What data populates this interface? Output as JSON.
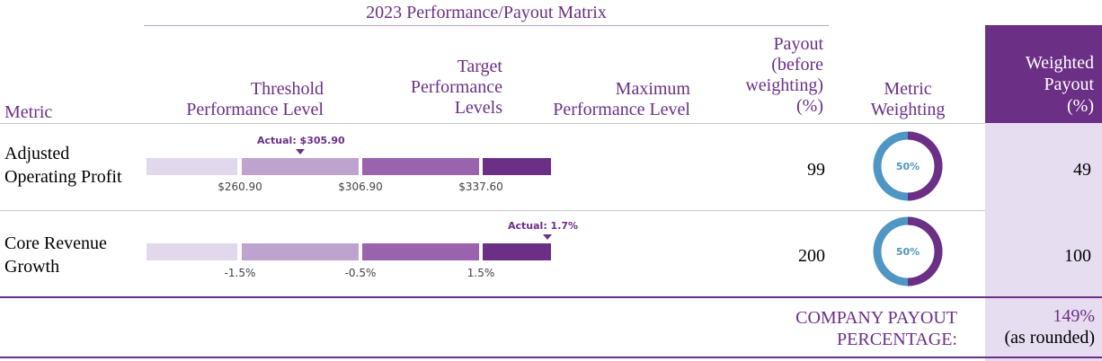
{
  "matrix_title": "2023 Performance/Payout Matrix",
  "headers": {
    "metric": "Metric",
    "threshold_1": "Threshold",
    "threshold_2": "Performance Level",
    "target_1": "Target",
    "target_2": "Performance",
    "target_3": "Levels",
    "maximum_1": "Maximum",
    "maximum_2": "Performance Level",
    "payout_1": "Payout",
    "payout_2": "(before",
    "payout_3": "weighting)",
    "payout_4": "(%)",
    "weighting_1": "Metric",
    "weighting_2": "Weighting",
    "weighted_1": "Weighted",
    "weighted_2": "Payout",
    "weighted_3": "(%)"
  },
  "rows": [
    {
      "metric_line1": "Adjusted",
      "metric_line2": "Operating Profit",
      "actual_label": "Actual: $305.90",
      "ticks": [
        "$260.90",
        "$306.90",
        "$337.60"
      ],
      "payout": "99",
      "weighting": "50%",
      "weighting_fraction": 0.5,
      "weighted_payout": "49"
    },
    {
      "metric_line1": "Core Revenue",
      "metric_line2": "Growth",
      "actual_label": "Actual: 1.7%",
      "ticks": [
        "-1.5%",
        "-0.5%",
        "1.5%"
      ],
      "payout": "200",
      "weighting": "50%",
      "weighting_fraction": 0.5,
      "weighted_payout": "100"
    }
  ],
  "total": {
    "label_1": "COMPANY PAYOUT",
    "label_2": "PERCENTAGE:",
    "value": "149%",
    "note": "(as rounded)"
  },
  "colors": {
    "accent": "#6b2f86",
    "segment_1": "#e2d8ec",
    "segment_2": "#bea3cf",
    "segment_3": "#9a63ad",
    "segment_4": "#6b2f86",
    "donut_blue": "#4f96c4",
    "weighted_column_bg": "#e6ddf0"
  }
}
